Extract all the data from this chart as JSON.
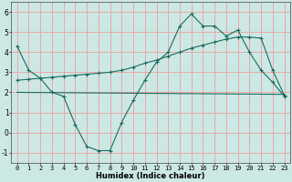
{
  "xlabel": "Humidex (Indice chaleur)",
  "bg_color": "#cce8e4",
  "grid_color": "#e8a8a8",
  "line_color": "#1a6b60",
  "xlim": [
    -0.5,
    23.5
  ],
  "ylim": [
    -1.5,
    6.5
  ],
  "yticks": [
    -1,
    0,
    1,
    2,
    3,
    4,
    5,
    6
  ],
  "xticks": [
    0,
    1,
    2,
    3,
    4,
    5,
    6,
    7,
    8,
    9,
    10,
    11,
    12,
    13,
    14,
    15,
    16,
    17,
    18,
    19,
    20,
    21,
    22,
    23
  ],
  "line1_x": [
    0,
    1,
    2,
    3,
    4,
    5,
    6,
    7,
    8,
    9,
    10,
    11,
    12,
    13,
    14,
    15,
    16,
    17,
    18,
    19,
    20,
    21,
    22,
    23
  ],
  "line1_y": [
    4.3,
    3.1,
    2.7,
    2.0,
    1.8,
    0.4,
    -0.7,
    -0.9,
    -0.9,
    0.5,
    1.6,
    2.6,
    3.5,
    4.0,
    5.3,
    5.9,
    5.3,
    5.3,
    4.8,
    5.1,
    4.0,
    3.1,
    2.5,
    1.8
  ],
  "line2_x": [
    0,
    23
  ],
  "line2_y": [
    2.0,
    1.9
  ],
  "line3_x": [
    0,
    1,
    2,
    3,
    4,
    5,
    6,
    7,
    8,
    9,
    10,
    11,
    12,
    13,
    14,
    15,
    16,
    17,
    18,
    19,
    20,
    21,
    22,
    23
  ],
  "line3_y": [
    2.6,
    2.65,
    2.7,
    2.75,
    2.8,
    2.85,
    2.9,
    2.95,
    3.0,
    3.1,
    3.25,
    3.45,
    3.6,
    3.8,
    4.0,
    4.2,
    4.35,
    4.5,
    4.65,
    4.75,
    4.75,
    4.7,
    3.1,
    1.85
  ],
  "tick_fontsize": 5.0,
  "xlabel_fontsize": 6.0
}
